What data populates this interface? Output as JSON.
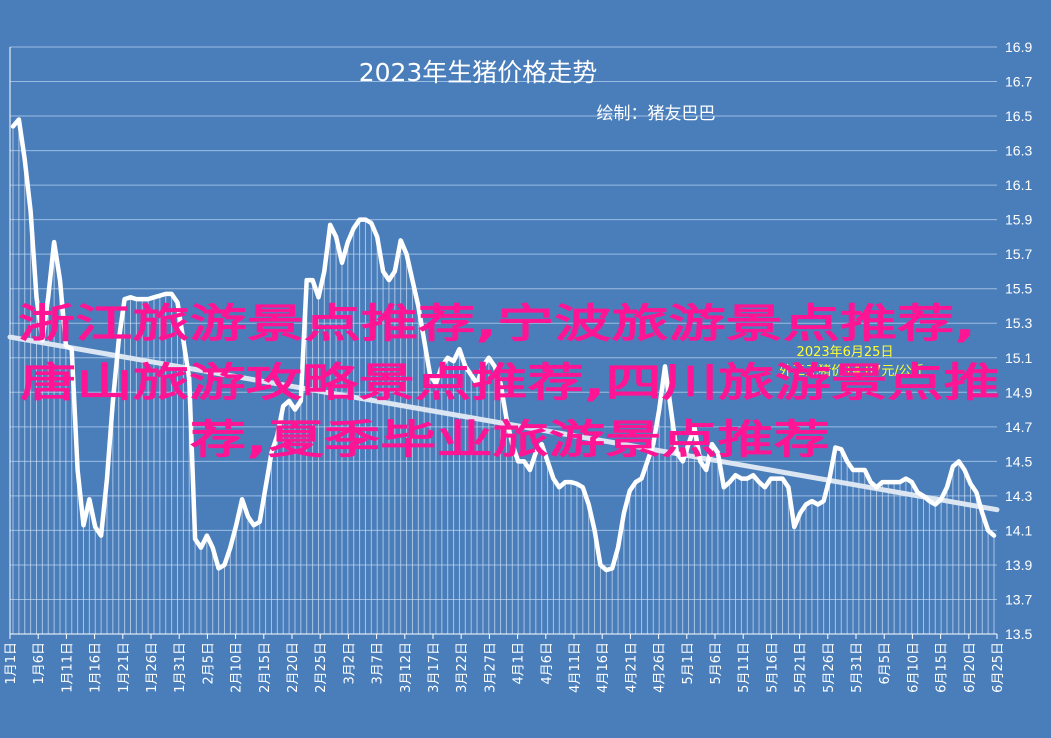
{
  "chart_data": {
    "type": "line",
    "title": "2023年生猪价格走势",
    "subtitle": "绘制：猪友巴巴",
    "annotation": [
      "2023年6月25日",
      "外三元猪价14.07元/公斤"
    ],
    "ylim": [
      13.5,
      16.9
    ],
    "yticks": [
      "16.9",
      "16.7",
      "16.5",
      "16.3",
      "16.1",
      "15.9",
      "15.7",
      "15.5",
      "15.3",
      "15.1",
      "14.9",
      "14.7",
      "14.5",
      "14.3",
      "14.1",
      "13.9",
      "13.7",
      "13.5"
    ],
    "xticks": [
      "1月1日",
      "1月6日",
      "1月11日",
      "1月16日",
      "1月21日",
      "1月26日",
      "1月31日",
      "2月5日",
      "2月10日",
      "2月15日",
      "2月20日",
      "2月25日",
      "3月2日",
      "3月7日",
      "3月12日",
      "3月17日",
      "3月22日",
      "3月27日",
      "4月1日",
      "4月6日",
      "4月11日",
      "4月16日",
      "4月21日",
      "4月26日",
      "5月1日",
      "5月6日",
      "5月11日",
      "5月16日",
      "5月21日",
      "5月26日",
      "5月31日",
      "6月5日",
      "6月10日",
      "6月15日",
      "6月20日",
      "6月25日"
    ],
    "grid": true,
    "series": [
      {
        "style": "line",
        "values": [
          16.44,
          16.48,
          16.25,
          15.95,
          15.45,
          15.2,
          15.45,
          15.77,
          15.55,
          15.17,
          15.15,
          14.45,
          14.13,
          14.28,
          14.12,
          14.07,
          14.4,
          14.85,
          15.2,
          15.44,
          15.45,
          15.44,
          15.44,
          15.44,
          15.45,
          15.46,
          15.47,
          15.47,
          15.42,
          15.2,
          14.98,
          14.05,
          14.0,
          14.07,
          14.0,
          13.88,
          13.9,
          14.0,
          14.13,
          14.28,
          14.18,
          14.13,
          14.15,
          14.35,
          14.55,
          14.65,
          14.82,
          14.85,
          14.8,
          14.85,
          15.55,
          15.55,
          15.45,
          15.6,
          15.87,
          15.8,
          15.65,
          15.77,
          15.85,
          15.9,
          15.9,
          15.88,
          15.8,
          15.6,
          15.55,
          15.6,
          15.78,
          15.7,
          15.55,
          15.4,
          15.2,
          15.0,
          14.95,
          15.05,
          15.1,
          15.08,
          15.15,
          15.05,
          15.0,
          14.95,
          15.05,
          15.1,
          15.05,
          14.95,
          14.75,
          14.6,
          14.5,
          14.5,
          14.45,
          14.55,
          14.6,
          14.5,
          14.4,
          14.35,
          14.38,
          14.38,
          14.37,
          14.35,
          14.25,
          14.1,
          13.9,
          13.87,
          13.88,
          14.0,
          14.2,
          14.33,
          14.38,
          14.4,
          14.5,
          14.6,
          14.8,
          15.05,
          14.8,
          14.55,
          14.5,
          14.6,
          14.7,
          14.5,
          14.45,
          14.6,
          14.55,
          14.35,
          14.38,
          14.42,
          14.4,
          14.4,
          14.42,
          14.38,
          14.35,
          14.4,
          14.4,
          14.4,
          14.35,
          14.12,
          14.2,
          14.25,
          14.27,
          14.25,
          14.27,
          14.4,
          14.58,
          14.57,
          14.5,
          14.45,
          14.45,
          14.45,
          14.38,
          14.35,
          14.38,
          14.38,
          14.38,
          14.38,
          14.4,
          14.38,
          14.32,
          14.3,
          14.27,
          14.25,
          14.28,
          14.35,
          14.47,
          14.5,
          14.45,
          14.37,
          14.32,
          14.2,
          14.1,
          14.07
        ]
      },
      {
        "style": "trendline",
        "values": [
          15.22,
          14.22
        ]
      }
    ]
  },
  "watermark": {
    "line1": "浙江旅游景点推荐,宁波旅游景点推荐,",
    "line2": "唐山旅游攻略景点推荐,四川旅游景点推",
    "line3": "荐,夏季毕业旅游景点推荐"
  }
}
